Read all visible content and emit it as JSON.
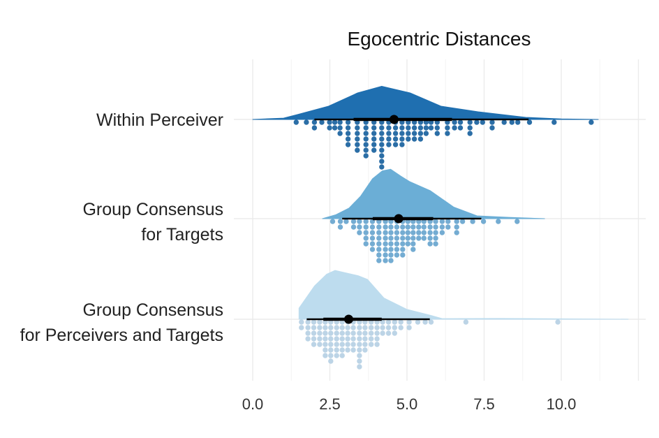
{
  "chart_data": {
    "type": "raincloud",
    "title": "Egocentric Distances",
    "xlabel": "",
    "ylabel": "",
    "xlim": [
      -0.6,
      12.9
    ],
    "x_ticks": [
      0,
      2.5,
      5,
      7.5,
      10
    ],
    "x_tick_labels": [
      "0.0",
      "2.5",
      "5.0",
      "7.5",
      "10.0"
    ],
    "grid": true,
    "series": [
      {
        "name": "Within Perceiver",
        "label_lines": [
          "Within Perceiver"
        ],
        "color": "#1f6fb0",
        "dot_color": "#2b6ea6",
        "density": [
          [
            0,
            0
          ],
          [
            1,
            0.01
          ],
          [
            1.45,
            0.037
          ],
          [
            2.46,
            0.1
          ],
          [
            3.4,
            0.2
          ],
          [
            4.18,
            0.25
          ],
          [
            5.1,
            0.2
          ],
          [
            6.1,
            0.1
          ],
          [
            7.3,
            0.058
          ],
          [
            8.85,
            0.016
          ],
          [
            10,
            0.004
          ],
          [
            11.2,
            0
          ]
        ],
        "dots": [
          [
            1.41,
            1
          ],
          [
            1.74,
            1
          ],
          [
            2.0,
            2
          ],
          [
            2.24,
            1
          ],
          [
            2.49,
            2
          ],
          [
            2.66,
            2
          ],
          [
            2.83,
            3
          ],
          [
            3.09,
            5
          ],
          [
            3.39,
            6
          ],
          [
            3.67,
            7
          ],
          [
            3.93,
            6
          ],
          [
            4.18,
            9
          ],
          [
            4.41,
            5
          ],
          [
            4.63,
            5
          ],
          [
            4.84,
            5
          ],
          [
            5.04,
            4
          ],
          [
            5.24,
            4
          ],
          [
            5.44,
            4
          ],
          [
            5.62,
            3
          ],
          [
            5.78,
            2
          ],
          [
            5.98,
            3
          ],
          [
            6.31,
            3
          ],
          [
            6.54,
            2
          ],
          [
            6.73,
            2
          ],
          [
            7.04,
            3
          ],
          [
            7.26,
            1
          ],
          [
            7.45,
            1
          ],
          [
            7.76,
            2
          ],
          [
            8.15,
            1
          ],
          [
            8.4,
            1
          ],
          [
            8.59,
            1
          ],
          [
            8.97,
            1
          ],
          [
            9.77,
            1
          ],
          [
            10.97,
            1
          ]
        ],
        "point": 4.58,
        "interval_thick": [
          3.27,
          6.46
        ],
        "interval_thin": [
          2.0,
          8.94
        ]
      },
      {
        "name": "Group Consensus for Targets",
        "label_lines": [
          "Group Consensus",
          "for Targets"
        ],
        "color": "#6baed6",
        "dot_color": "#74acd2",
        "density": [
          [
            2.26,
            0
          ],
          [
            2.7,
            0.03
          ],
          [
            3.12,
            0.079
          ],
          [
            3.5,
            0.17
          ],
          [
            3.88,
            0.3
          ],
          [
            4.2,
            0.36
          ],
          [
            4.47,
            0.372
          ],
          [
            4.8,
            0.32
          ],
          [
            5.08,
            0.28
          ],
          [
            5.76,
            0.21
          ],
          [
            6.51,
            0.088
          ],
          [
            7.27,
            0.021
          ],
          [
            8.3,
            0.01
          ],
          [
            9.46,
            0
          ]
        ],
        "dots": [
          [
            2.59,
            1
          ],
          [
            2.84,
            2
          ],
          [
            3.03,
            1
          ],
          [
            3.27,
            2
          ],
          [
            3.46,
            3
          ],
          [
            3.67,
            5
          ],
          [
            3.88,
            6
          ],
          [
            4.09,
            8
          ],
          [
            4.3,
            8
          ],
          [
            4.48,
            8
          ],
          [
            4.67,
            7
          ],
          [
            4.86,
            7
          ],
          [
            5.03,
            5
          ],
          [
            5.2,
            6
          ],
          [
            5.38,
            4
          ],
          [
            5.55,
            4
          ],
          [
            5.75,
            5
          ],
          [
            5.93,
            5
          ],
          [
            6.14,
            3
          ],
          [
            6.33,
            2
          ],
          [
            6.61,
            3
          ],
          [
            6.8,
            1
          ],
          [
            7.13,
            1
          ],
          [
            7.48,
            1
          ],
          [
            7.96,
            1
          ],
          [
            8.57,
            1
          ]
        ],
        "point": 4.73,
        "interval_thick": [
          3.89,
          5.85
        ],
        "interval_thin": [
          2.9,
          7.41
        ]
      },
      {
        "name": "Group Consensus for Perceivers and Targets",
        "label_lines": [
          "Group Consensus",
          "for Perceivers and Targets"
        ],
        "color": "#bddcee",
        "dot_color": "#bcd4e6",
        "density": [
          [
            1.5,
            0
          ],
          [
            1.5,
            0.083
          ],
          [
            2.0,
            0.25
          ],
          [
            2.4,
            0.34
          ],
          [
            2.67,
            0.368
          ],
          [
            3.0,
            0.35
          ],
          [
            3.42,
            0.328
          ],
          [
            3.72,
            0.3
          ],
          [
            4.25,
            0.16
          ],
          [
            5.0,
            0.074
          ],
          [
            5.76,
            0.03
          ],
          [
            6.14,
            0.005
          ],
          [
            8,
            0.006
          ],
          [
            12.17,
            0
          ]
        ],
        "dots": [
          [
            1.58,
            2
          ],
          [
            1.79,
            4
          ],
          [
            1.98,
            5
          ],
          [
            2.17,
            5
          ],
          [
            2.35,
            7
          ],
          [
            2.53,
            8
          ],
          [
            2.72,
            7
          ],
          [
            2.9,
            7
          ],
          [
            3.08,
            6
          ],
          [
            3.26,
            6
          ],
          [
            3.46,
            9
          ],
          [
            3.64,
            6
          ],
          [
            3.84,
            5
          ],
          [
            4.03,
            5
          ],
          [
            4.21,
            3
          ],
          [
            4.4,
            3
          ],
          [
            4.6,
            3
          ],
          [
            4.8,
            2
          ],
          [
            5.07,
            2
          ],
          [
            5.35,
            1
          ],
          [
            5.59,
            1
          ],
          [
            5.78,
            1
          ],
          [
            6.91,
            1
          ],
          [
            9.89,
            1
          ]
        ],
        "point": 3.11,
        "interval_thick": [
          2.29,
          4.18
        ],
        "interval_thin": [
          1.75,
          5.74
        ]
      }
    ]
  }
}
